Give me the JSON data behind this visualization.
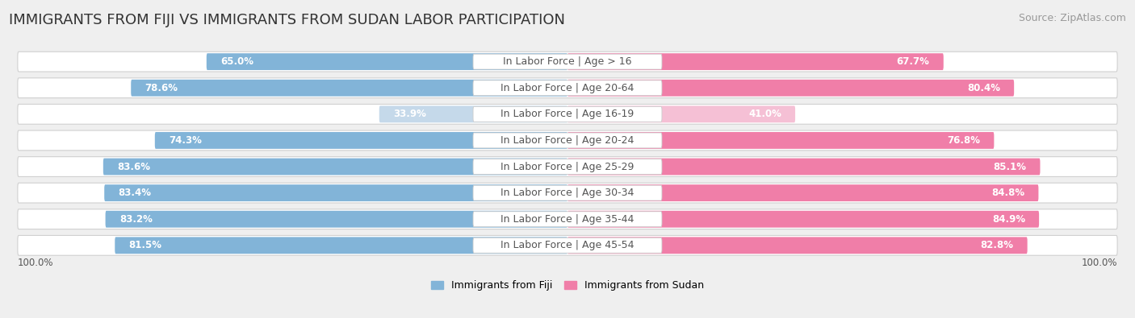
{
  "title": "IMMIGRANTS FROM FIJI VS IMMIGRANTS FROM SUDAN LABOR PARTICIPATION",
  "source": "Source: ZipAtlas.com",
  "categories": [
    "In Labor Force | Age > 16",
    "In Labor Force | Age 20-64",
    "In Labor Force | Age 16-19",
    "In Labor Force | Age 20-24",
    "In Labor Force | Age 25-29",
    "In Labor Force | Age 30-34",
    "In Labor Force | Age 35-44",
    "In Labor Force | Age 45-54"
  ],
  "fiji_values": [
    65.0,
    78.6,
    33.9,
    74.3,
    83.6,
    83.4,
    83.2,
    81.5
  ],
  "sudan_values": [
    67.7,
    80.4,
    41.0,
    76.8,
    85.1,
    84.8,
    84.9,
    82.8
  ],
  "fiji_color": "#82b4d8",
  "fiji_color_light": "#c5d9ea",
  "sudan_color": "#f07ea8",
  "sudan_color_light": "#f5c0d5",
  "row_bg_color": "#ffffff",
  "outer_bg_color": "#efefef",
  "title_fontsize": 13,
  "source_fontsize": 9,
  "label_fontsize": 9,
  "value_fontsize": 8.5,
  "legend_fontsize": 9,
  "axis_label_fontsize": 8.5,
  "legend_label_fiji": "Immigrants from Fiji",
  "legend_label_sudan": "Immigrants from Sudan"
}
